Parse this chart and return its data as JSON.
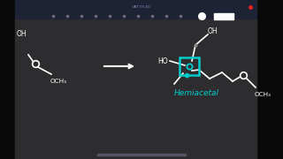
{
  "bg_color": "#252528",
  "bg_main": "#2d2d30",
  "toolbar_color": "#1e2235",
  "structure_color": "#ffffff",
  "highlight_color": "#00cccc",
  "label_text": "Hemiacetal",
  "oh_label": "OH",
  "ho_label": "HO",
  "och3_label": "OCH₃",
  "left_black": "#090909",
  "right_black": "#090909",
  "bottom_bar": "#555566",
  "title_text": "UNTITLED",
  "title_color": "#7788aa",
  "red_dot": "#ee2222",
  "toolbar_icon_color": "#666677"
}
